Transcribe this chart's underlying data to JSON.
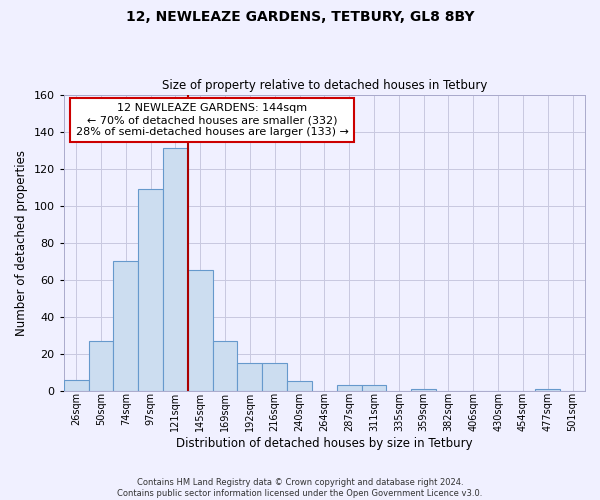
{
  "title": "12, NEWLEAZE GARDENS, TETBURY, GL8 8BY",
  "subtitle": "Size of property relative to detached houses in Tetbury",
  "xlabel": "Distribution of detached houses by size in Tetbury",
  "ylabel": "Number of detached properties",
  "bin_labels": [
    "26sqm",
    "50sqm",
    "74sqm",
    "97sqm",
    "121sqm",
    "145sqm",
    "169sqm",
    "192sqm",
    "216sqm",
    "240sqm",
    "264sqm",
    "287sqm",
    "311sqm",
    "335sqm",
    "359sqm",
    "382sqm",
    "406sqm",
    "430sqm",
    "454sqm",
    "477sqm",
    "501sqm"
  ],
  "bar_heights": [
    6,
    27,
    70,
    109,
    131,
    65,
    27,
    15,
    15,
    5,
    0,
    3,
    3,
    0,
    1,
    0,
    0,
    0,
    0,
    1,
    0
  ],
  "bar_color": "#ccddf0",
  "bar_edge_color": "#6699cc",
  "marker_line_color": "#aa0000",
  "annotation_line1": "12 NEWLEAZE GARDENS: 144sqm",
  "annotation_line2": "← 70% of detached houses are smaller (332)",
  "annotation_line3": "28% of semi-detached houses are larger (133) →",
  "annotation_box_color": "#ffffff",
  "annotation_box_edge_color": "#cc0000",
  "ylim": [
    0,
    160
  ],
  "yticks": [
    0,
    20,
    40,
    60,
    80,
    100,
    120,
    140,
    160
  ],
  "footer_line1": "Contains HM Land Registry data © Crown copyright and database right 2024.",
  "footer_line2": "Contains public sector information licensed under the Open Government Licence v3.0.",
  "bg_color": "#f0f0ff",
  "grid_color": "#c8c8e0",
  "marker_bar_index": 4
}
